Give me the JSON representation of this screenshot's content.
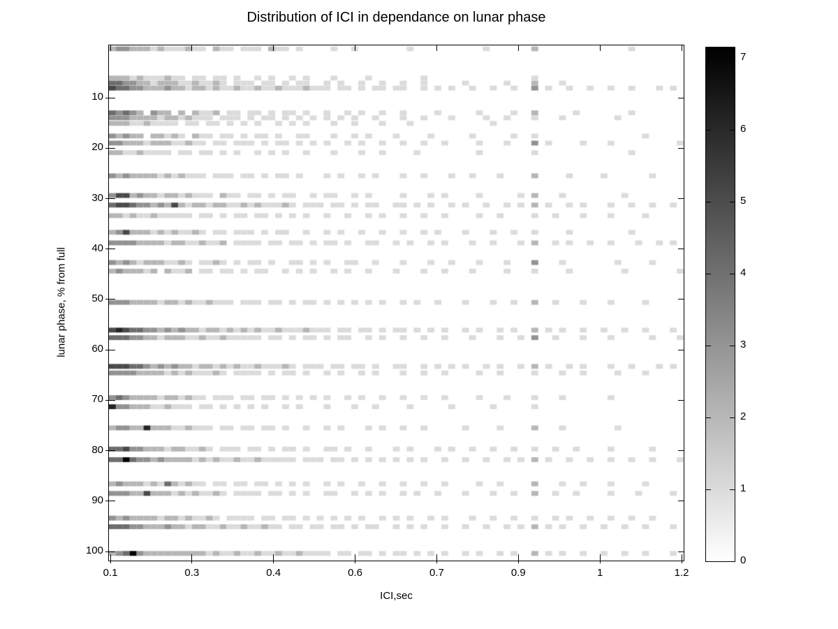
{
  "figure": {
    "title": "Distribution of ICI in dependance on lunar phase",
    "xlabel": "ICI,sec",
    "ylabel": "lunar phase, % from full"
  },
  "axes": {
    "x_tick_labels": [
      "0.1",
      "0.3",
      "0.4",
      "0.6",
      "0.7",
      "0.9",
      "1",
      "1.2"
    ],
    "y_tick_labels": [
      "10",
      "20",
      "30",
      "40",
      "50",
      "60",
      "70",
      "80",
      "90",
      "100"
    ],
    "y_tick_values": [
      10,
      20,
      30,
      40,
      50,
      60,
      70,
      80,
      90,
      100
    ],
    "y_range": [
      -0.4,
      101.8
    ],
    "grid": false
  },
  "colorbar": {
    "tick_labels": [
      "0",
      "1",
      "2",
      "3",
      "4",
      "5",
      "6",
      "7"
    ],
    "tick_values": [
      0,
      1,
      2,
      3,
      4,
      5,
      6,
      7
    ],
    "min": 0,
    "max": 7.15,
    "color_low": "#ffffff",
    "color_high": "#000000",
    "colormap": "reversed-gray (0 = white, 7 = black)"
  },
  "chart_data": {
    "type": "heatmap",
    "title": "Distribution of ICI in dependance on lunar phase",
    "xlabel": "ICI,sec",
    "ylabel": "lunar phase, % from full",
    "x_axis_note": "8 evenly spaced ticks labeled 0.1, 0.3, 0.4, 0.6, 0.7, 0.9, 1, 1.2 sec (nonlinear bin scale)",
    "columns": 83,
    "value_scale": "each digit 0-7 is the bin count; 0 = white, 7 = black",
    "vertical_band_column": 61,
    "rows": [
      {
        "phase": 0.3,
        "values": "23322212111211021101110211010000100100000001000000000010000002000000000000010000000"
      },
      {
        "phase": 6.1,
        "values": "22212111211011011010010100101000100001000000010000000000000001000000000000000000000"
      },
      {
        "phase": 7.1,
        "values": "44332212221121121011101101011001010010010010010000010000010002000100000000000000000"
      },
      {
        "phase": 8.1,
        "values": "54433222322122121121121121112111011010110110010101001001001003010010010010010001010"
      },
      {
        "phase": 13.0,
        "values": "43432032202021120110110101101001001010010010000100000100001002000001000000010000000"
      },
      {
        "phase": 14.0,
        "values": "33322221221211101110101101010101010100100010010001000010010001000100000001000000000"
      },
      {
        "phase": 15.1,
        "values": "22211211110110110101010010101000100100010001000000000001000000000000000000000000000"
      },
      {
        "phase": 17.6,
        "values": "32322022121021101101011010011000100101000100001000001000001001000000000000000100000"
      },
      {
        "phase": 19.0,
        "values": "33222122211211011011101011010101001010010010010010000100010003010000100010000000001"
      },
      {
        "phase": 20.9,
        "values": "22112111101101101010010101001000100010010000100000000100000001000000000000010000000"
      },
      {
        "phase": 25.5,
        "values": "32322221212111011101101011010001010010100010010001001000100002000010000100000010000"
      },
      {
        "phase": 29.4,
        "values": "35523221221211102110110101100101100101000010001010000100000102000100000000100000000"
      },
      {
        "phase": 31.3,
        "values": "45543323252122122112121112101110110101100110101001010010010102010010100010010010010"
      },
      {
        "phase": 33.4,
        "values": "22121121111101101011011010101001001001010010010010000100100001001000100010000100000"
      },
      {
        "phase": 36.7,
        "values": "23522212121121011011101011001001010010010010010100010001001001000010000000010000000"
      },
      {
        "phase": 38.8,
        "values": "33332222122112112011110110110101101001100101001010001001000102001010010010001001010"
      },
      {
        "phase": 42.7,
        "values": "32321222112101121010110100110101001100100010001001000100010003000100000001000010000"
      },
      {
        "phase": 44.4,
        "values": "23222120211201101101011001010100101001000100010010001000010001000010000000100000001"
      },
      {
        "phase": 50.6,
        "values": "33322221221211211101110110101101010101010010100100010001001002001000100010000100000"
      },
      {
        "phase": 56.1,
        "values": "56544332323221221212121121112111011011010110101010010100101002010100100100100100010"
      },
      {
        "phase": 57.6,
        "values": "44433221222112112111110110101101011001010010010010001000100103001000100010000010001"
      },
      {
        "phase": 63.3,
        "values": "55544323232212212121121112101110110110100110010101010010100102010010100010010001010"
      },
      {
        "phase": 64.6,
        "values": "33332222121211121011110101101001010010100010010010000100100001000100100001000100000"
      },
      {
        "phase": 69.5,
        "values": "34322221221211011101101101010101001010010010010010000100010001000100000010000000000"
      },
      {
        "phase": 71.3,
        "values": "63322211211101101010101001010001000100100001000001000001000001000000000000000000000"
      },
      {
        "phase": 75.5,
        "values": "23322622211211101101101101001001010001010010010000010000100002000100000001000000000"
      },
      {
        "phase": 79.7,
        "values": "44533222122112101110110101101001101001000101000101001001001001001001000010000010000"
      },
      {
        "phase": 81.8,
        "values": "44743323222212121121121111101110110101010101010010010010010102010010010010010010001"
      },
      {
        "phase": 86.6,
        "values": "23222121421211011011011010101001010010010010010010000100100002000100100010000100000"
      },
      {
        "phase": 88.5,
        "values": "33322522212121121011110110101001100101010010100100010001001002001001000010001000010"
      },
      {
        "phase": 93.4,
        "values": "32322221221211210111101101101010101010010101001010001001001001001010010010010010000"
      },
      {
        "phase": 95.1,
        "values": "44433222322122112112112110110110110101100101010010010010010102010100100100100100010"
      },
      {
        "phase": 100.4,
        "values": "23473222222222121121121121121111011011010110101010010100101002010100100100100100010"
      }
    ]
  }
}
